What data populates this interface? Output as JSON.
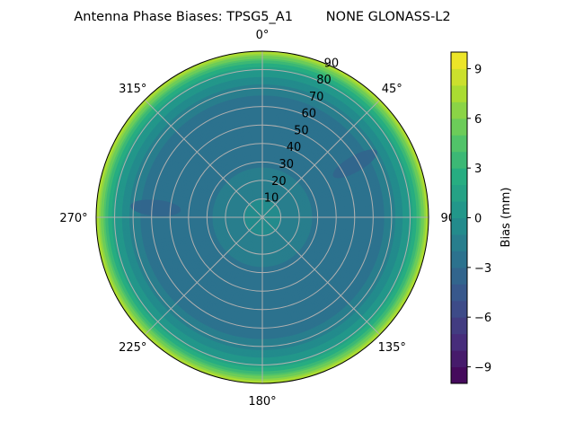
{
  "chart_data": {
    "type": "heatmap",
    "subtype": "polar-contourf",
    "title": "Antenna Phase Biases: TPSG5_A1        NONE GLONASS-L2",
    "theta_zero": "north",
    "theta_direction": "clockwise",
    "theta_ticks": [
      "0°",
      "45°",
      "90°",
      "135°",
      "180°",
      "225°",
      "270°",
      "315°"
    ],
    "theta_tick_values": [
      0,
      45,
      90,
      135,
      180,
      225,
      270,
      315
    ],
    "r_ticks": [
      "10",
      "20",
      "30",
      "40",
      "50",
      "60",
      "70",
      "80",
      "90"
    ],
    "r_tick_values": [
      10,
      20,
      30,
      40,
      50,
      60,
      70,
      80,
      90
    ],
    "rlim": [
      0,
      90
    ],
    "grid": true,
    "colormap": "viridis",
    "colorbar": {
      "label": "Bias (mm)",
      "range": [
        -10,
        10
      ],
      "level_step": 1,
      "ticks": [
        "9",
        "6",
        "3",
        "0",
        "−3",
        "−6",
        "−9"
      ],
      "tick_values": [
        9,
        6,
        3,
        0,
        -3,
        -6,
        -9
      ],
      "placement": "right"
    },
    "radial_profile": {
      "zenith": [
        0,
        10,
        20,
        30,
        40,
        50,
        60,
        70,
        80,
        85,
        90
      ],
      "bias": [
        -0.5,
        -1,
        -1.5,
        -2.2,
        -2.8,
        -3,
        -2.8,
        -1.5,
        1,
        4,
        8
      ]
    },
    "local_minima": [
      {
        "azimuth": 60,
        "zenith": 58,
        "bias": -3.5
      },
      {
        "azimuth": 275,
        "zenith": 58,
        "bias": -3.5
      }
    ]
  }
}
